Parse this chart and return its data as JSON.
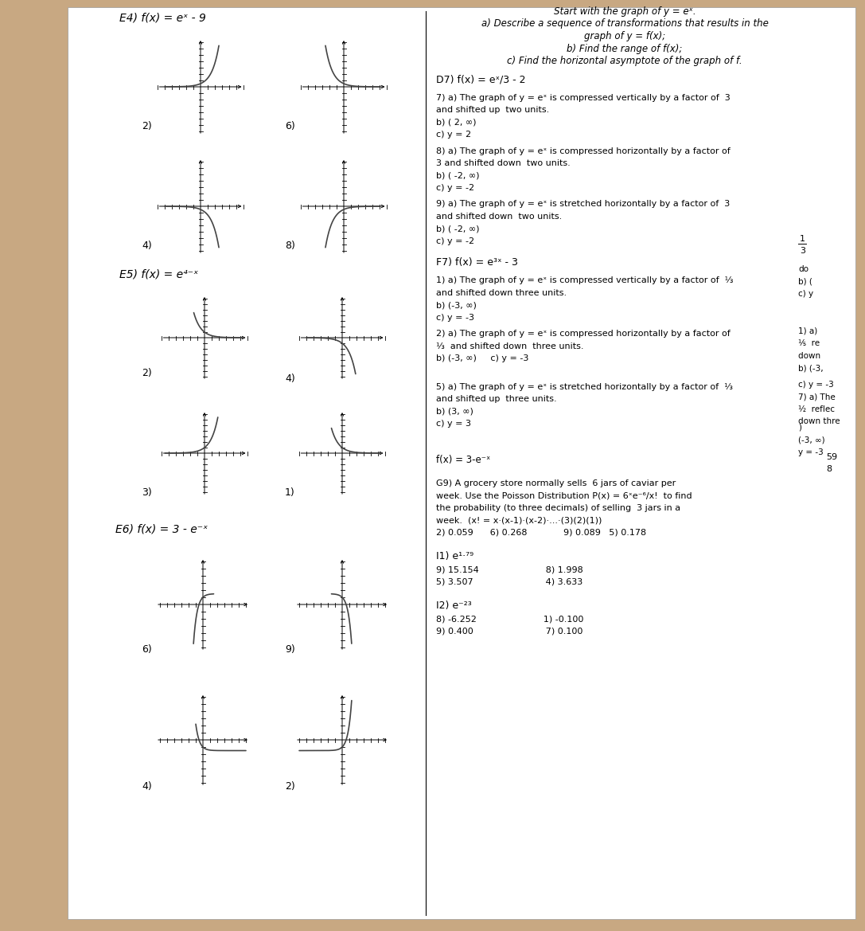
{
  "bg_color": "#c8a882",
  "paper_color": "#ffffff",
  "text_color": "#222222",
  "line_color": "#555555",
  "sections": {
    "E4": {
      "title": "E4) f(x) = eˣ - 9",
      "labels": [
        "2)",
        "6)",
        "4)",
        "8)"
      ]
    },
    "E5": {
      "title": "E5) f(x) = e⁴⁻ˣ",
      "labels": [
        "2)",
        "4)",
        "3)",
        "1)"
      ]
    },
    "E6": {
      "title": "E6) f(x) = 3 - e⁻ˣ",
      "labels": [
        "6)",
        "9)",
        "4)",
        "2)"
      ]
    }
  }
}
